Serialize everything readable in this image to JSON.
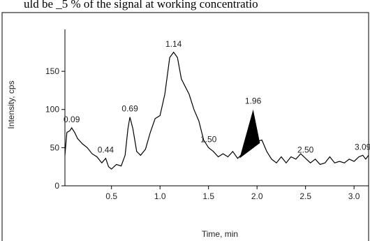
{
  "chart_data": {
    "type": "line",
    "caption": "uld be _5 % of the signal at working concentratio",
    "xlabel": "Time, min",
    "ylabel": "Intensity, cps",
    "xlim": [
      0.02,
      3.15
    ],
    "ylim": [
      0,
      205
    ],
    "xticks": [
      0.5,
      {
        "value": 1.0,
        "label": "1.0"
      },
      1.5,
      {
        "value": 2.0,
        "label": "2.0"
      },
      2.5,
      {
        "value": 3.0,
        "label": "3.0"
      }
    ],
    "yticks": [
      0,
      50,
      100,
      150
    ],
    "series": [
      {
        "color": "#000000",
        "x": [
          0.02,
          0.04,
          0.07,
          0.09,
          0.12,
          0.15,
          0.2,
          0.25,
          0.3,
          0.35,
          0.4,
          0.44,
          0.47,
          0.5,
          0.55,
          0.6,
          0.64,
          0.67,
          0.69,
          0.72,
          0.76,
          0.8,
          0.85,
          0.9,
          0.95,
          1.0,
          1.05,
          1.1,
          1.14,
          1.18,
          1.22,
          1.3,
          1.35,
          1.4,
          1.45,
          1.5,
          1.55,
          1.6,
          1.65,
          1.7,
          1.75,
          1.8,
          1.85,
          1.9,
          1.96,
          2.0,
          2.05,
          2.1,
          2.15,
          2.2,
          2.25,
          2.3,
          2.35,
          2.4,
          2.45,
          2.5,
          2.55,
          2.6,
          2.65,
          2.7,
          2.75,
          2.8,
          2.85,
          2.9,
          2.95,
          3.0,
          3.05,
          3.09,
          3.12,
          3.15
        ],
        "values": [
          40,
          70,
          72,
          76,
          70,
          62,
          55,
          50,
          42,
          38,
          30,
          36,
          25,
          22,
          28,
          26,
          40,
          75,
          90,
          75,
          45,
          40,
          48,
          70,
          88,
          92,
          120,
          168,
          175,
          168,
          140,
          120,
          100,
          85,
          60,
          50,
          45,
          38,
          42,
          38,
          45,
          36,
          42,
          50,
          58,
          58,
          60,
          45,
          35,
          30,
          38,
          30,
          38,
          35,
          42,
          36,
          30,
          35,
          28,
          30,
          38,
          30,
          32,
          30,
          35,
          32,
          38,
          40,
          35,
          40
        ]
      }
    ],
    "peak_area": {
      "color": "#000000",
      "x": [
        1.82,
        1.96,
        2.03
      ],
      "values": [
        36,
        100,
        56
      ]
    },
    "annotations": [
      {
        "label": "0.09",
        "x": 0.09,
        "y": 76
      },
      {
        "label": "0.44",
        "x": 0.44,
        "y": 36
      },
      {
        "label": "0.69",
        "x": 0.69,
        "y": 90
      },
      {
        "label": "1.14",
        "x": 1.14,
        "y": 175
      },
      {
        "label": "1.50",
        "x": 1.5,
        "y": 50
      },
      {
        "label": "1.96",
        "x": 1.96,
        "y": 100
      },
      {
        "label": "2.50",
        "x": 2.5,
        "y": 36
      },
      {
        "label": "3.09",
        "x": 3.09,
        "y": 40
      }
    ]
  }
}
